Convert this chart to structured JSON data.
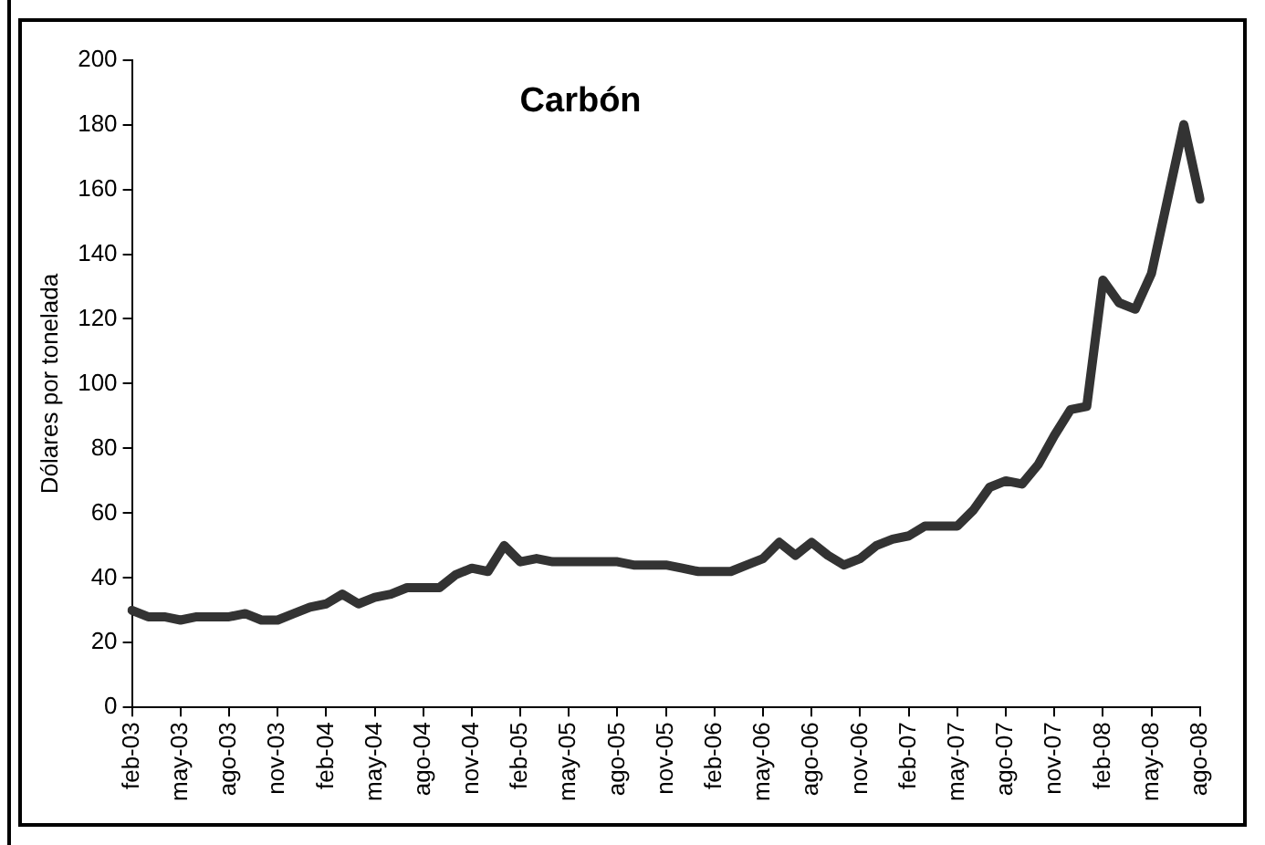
{
  "chart_data": {
    "type": "line",
    "title": "Carbón",
    "ylabel": "Dólares por tonelada",
    "categories": [
      "feb-03",
      null,
      null,
      "may-03",
      null,
      null,
      "ago-03",
      null,
      null,
      "nov-03",
      null,
      null,
      "feb-04",
      null,
      null,
      "may-04",
      null,
      null,
      "ago-04",
      null,
      null,
      "nov-04",
      null,
      null,
      "feb-05",
      null,
      null,
      "may-05",
      null,
      null,
      "ago-05",
      null,
      null,
      "nov-05",
      null,
      null,
      "feb-06",
      null,
      null,
      "may-06",
      null,
      null,
      "ago-06",
      null,
      null,
      "nov-06",
      null,
      null,
      "feb-07",
      null,
      null,
      "may-07",
      null,
      null,
      "ago-07",
      null,
      null,
      "nov-07",
      null,
      null,
      "feb-08",
      null,
      null,
      "may-08",
      null,
      null,
      "ago-08"
    ],
    "series": [
      {
        "color": "#333333",
        "values": [
          30,
          28,
          28,
          27,
          28,
          28,
          28,
          29,
          27,
          27,
          29,
          31,
          32,
          35,
          32,
          34,
          35,
          37,
          37,
          37,
          41,
          43,
          42,
          50,
          45,
          46,
          45,
          45,
          45,
          45,
          45,
          44,
          44,
          44,
          43,
          42,
          42,
          42,
          44,
          46,
          51,
          47,
          51,
          47,
          44,
          46,
          50,
          52,
          53,
          56,
          56,
          56,
          61,
          68,
          70,
          69,
          75,
          84,
          92,
          93,
          132,
          125,
          123,
          134,
          157,
          180,
          157
        ]
      }
    ],
    "ylim": [
      0,
      200
    ],
    "yticks": [
      0,
      20,
      40,
      60,
      80,
      100,
      120,
      140,
      160,
      180,
      200
    ],
    "grid": false,
    "legend": false,
    "marker": "none",
    "line_style": "solid"
  }
}
